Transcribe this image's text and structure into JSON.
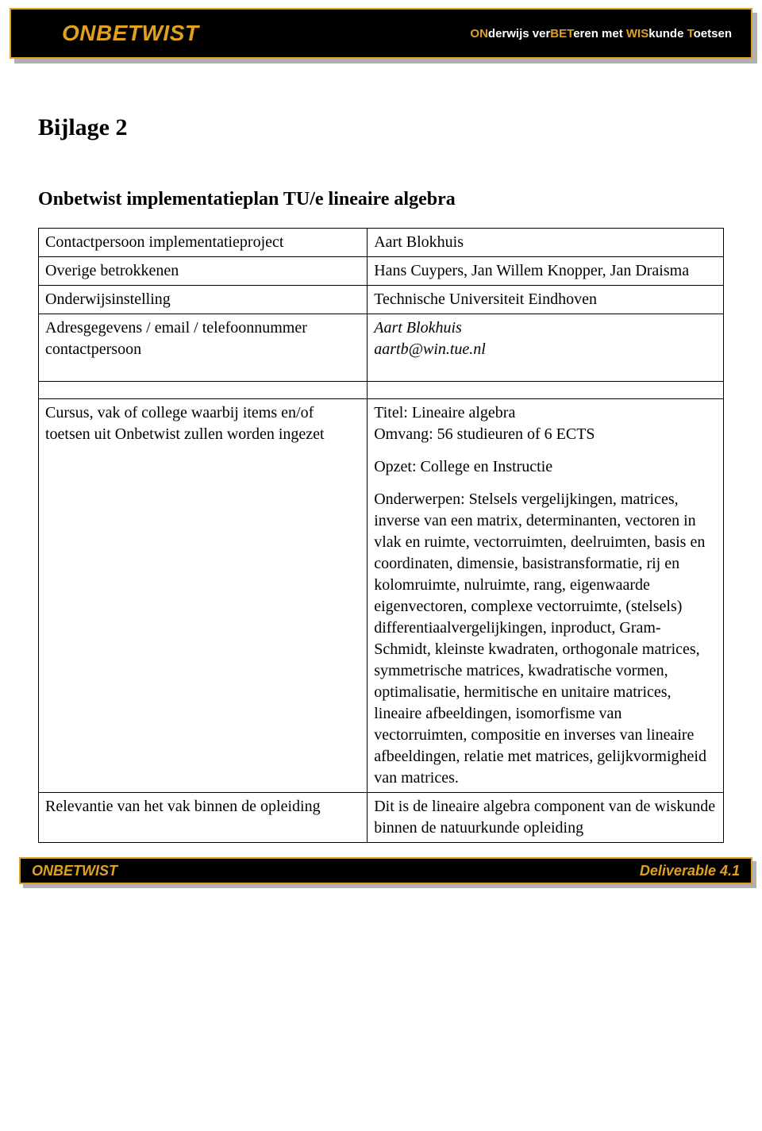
{
  "header": {
    "brand": "ONBETWIST",
    "tagline_parts": [
      {
        "t": "ON",
        "c": "y"
      },
      {
        "t": "derwijs ver",
        "c": "w"
      },
      {
        "t": "BET",
        "c": "y"
      },
      {
        "t": "eren met ",
        "c": "w"
      },
      {
        "t": "WIS",
        "c": "y"
      },
      {
        "t": "kunde ",
        "c": "w"
      },
      {
        "t": "T",
        "c": "y"
      },
      {
        "t": "oetsen",
        "c": "w"
      }
    ]
  },
  "page_title": "Bijlage 2",
  "doc_title": "Onbetwist implementatieplan TU/e lineaire algebra",
  "rows": {
    "r1": {
      "label": "Contactpersoon implementatieproject",
      "value": "Aart Blokhuis"
    },
    "r2": {
      "label": "Overige betrokkenen",
      "value": "Hans Cuypers, Jan Willem Knopper, Jan Draisma"
    },
    "r3": {
      "label": "Onderwijsinstelling",
      "value": "Technische Universiteit Eindhoven"
    },
    "r4": {
      "label": "Adresgegevens / email / telefoonnummer contactpersoon",
      "value_line1": "Aart Blokhuis",
      "value_line2": "aartb@win.tue.nl"
    },
    "r5": {
      "label": "Cursus, vak of college waarbij items en/of toetsen uit Onbetwist zullen worden ingezet",
      "p1": "Titel: Lineaire algebra",
      "p2": "Omvang: 56 studieuren of 6 ECTS",
      "p3": "Opzet: College en Instructie",
      "p4": "Onderwerpen:  Stelsels vergelijkingen, matrices, inverse van een matrix, determinanten, vectoren in vlak en ruimte, vectorruimten, deelruimten, basis en coordinaten, dimensie, basistransformatie, rij en kolomruimte, nulruimte, rang, eigenwaarde eigenvectoren, complexe vectorruimte, (stelsels) differentiaalvergelijkingen,  inproduct, Gram-Schmidt, kleinste kwadraten, orthogonale matrices, symmetrische matrices, kwadratische vormen, optimalisatie, hermitische en unitaire matrices, lineaire afbeeldingen, isomorfisme van vectorruimten, compositie en inverses van lineaire afbeeldingen, relatie met matrices, gelijkvormigheid van matrices."
    },
    "r6": {
      "label": "Relevantie van het vak binnen de opleiding",
      "value": "Dit is de lineaire algebra component van de wiskunde binnen de natuurkunde opleiding"
    }
  },
  "footer": {
    "left": "ONBETWIST",
    "right": "Deliverable 4.1"
  }
}
